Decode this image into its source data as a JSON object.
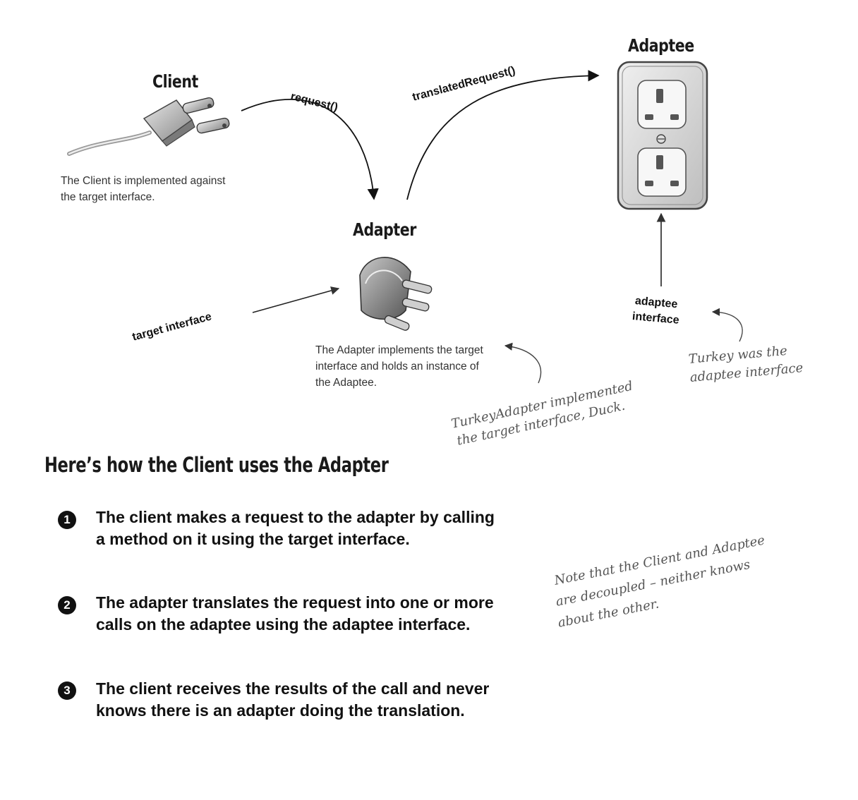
{
  "nodes": {
    "client": {
      "title": "Client",
      "description": "The Client is implemented against the target interface."
    },
    "adapter": {
      "title": "Adapter",
      "description": "The Adapter implements the target interface and holds an instance of the Adaptee."
    },
    "adaptee": {
      "title": "Adaptee"
    }
  },
  "edges": {
    "request": "request()",
    "translated_request": "translatedRequest()",
    "target_interface": "target interface",
    "adaptee_interface_line1": "adaptee",
    "adaptee_interface_line2": "interface"
  },
  "notes": {
    "turkey_adapter_line1": "TurkeyAdapter implemented",
    "turkey_adapter_line2": "the target interface, Duck.",
    "turkey_adaptee_line1": "Turkey was the",
    "turkey_adaptee_line2": "adaptee interface",
    "decoupled_line1": "Note that the Client and Adaptee",
    "decoupled_line2": "are decoupled – neither knows",
    "decoupled_line3": "about the other."
  },
  "section": {
    "title": "Here’s how the Client uses the Adapter",
    "steps": [
      {
        "number": "1",
        "text": "The client makes a request to the adapter by calling a method on it using the target interface."
      },
      {
        "number": "2",
        "text": "The adapter translates the request into one or more calls on the adaptee using the adaptee interface."
      },
      {
        "number": "3",
        "text": "The client receives the results of the call and never knows there is an adapter doing the translation."
      }
    ]
  }
}
